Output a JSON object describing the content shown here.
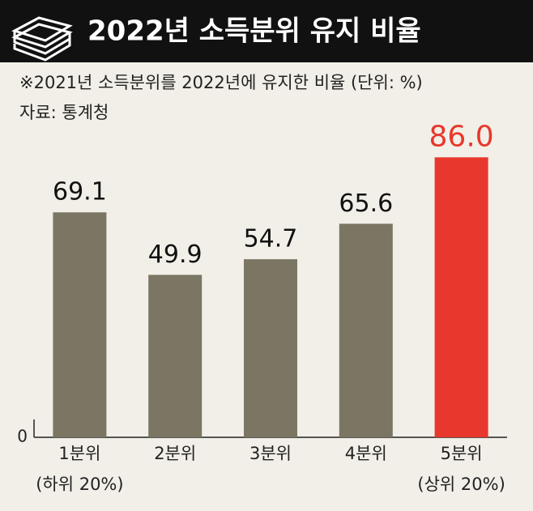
{
  "chart_data": {
    "type": "bar",
    "title": "2022년 소득분위 유지 비율",
    "subtitle": "※2021년 소득분위를 2022년에 유지한 비율 (단위: %)",
    "source": "자료: 통계청",
    "categories": [
      "1분위",
      "2분위",
      "3분위",
      "4분위",
      "5분위"
    ],
    "category_sublabels": [
      "(하위 20%)",
      null,
      null,
      null,
      "(상위 20%)"
    ],
    "values": [
      69.1,
      49.9,
      54.7,
      65.6,
      86.0
    ],
    "value_labels": [
      "69.1",
      "49.9",
      "54.7",
      "65.6",
      "86.0"
    ],
    "colors": [
      "#7b7663",
      "#7b7663",
      "#7b7663",
      "#7b7663",
      "#e8372c"
    ],
    "ylim": [
      0,
      100
    ],
    "yticks": [
      0
    ],
    "grid": false
  }
}
